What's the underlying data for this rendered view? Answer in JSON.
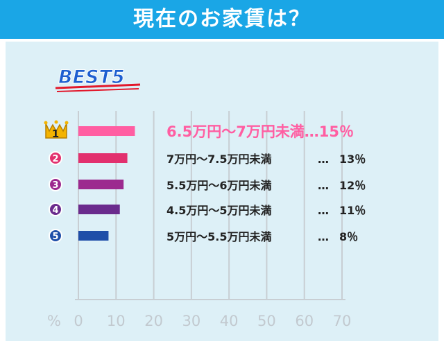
{
  "header": {
    "title": "現在のお家賃は？"
  },
  "badge_text": "BEST5",
  "chart_data": {
    "type": "bar",
    "orientation": "horizontal",
    "categories": [
      "6.5万円〜7万円未満",
      "7万円〜7.5万円未満",
      "5.5万円〜6万円未満",
      "4.5万円〜5万円未満",
      "5万円〜5.5万円未満"
    ],
    "values": [
      15,
      13,
      12,
      11,
      8
    ],
    "value_labels": [
      "15％",
      "13％",
      "12％",
      "11％",
      "8％"
    ],
    "separator": "…",
    "ranks": [
      "1",
      "2",
      "3",
      "4",
      "5"
    ],
    "colors": [
      "#ff5ea2",
      "#e2306e",
      "#9c2a8f",
      "#6a2b8d",
      "#1e4ea8"
    ],
    "rank_colors": [
      "#f4b400",
      "#e2306e",
      "#9c2a8f",
      "#6a2b8d",
      "#1e4ea8"
    ],
    "x_unit": "%",
    "xlim": [
      0,
      70
    ],
    "ticks": [
      0,
      10,
      20,
      30,
      40,
      50,
      60,
      70
    ],
    "grid": true
  }
}
